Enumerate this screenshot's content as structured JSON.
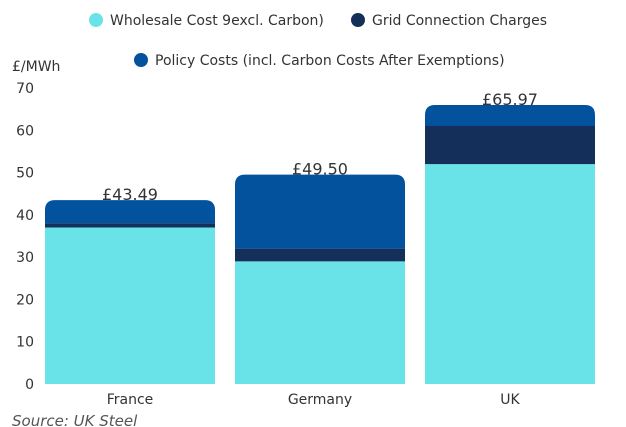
{
  "chart_data": {
    "type": "bar",
    "stacked": true,
    "categories": [
      "France",
      "Germany",
      "UK"
    ],
    "series": [
      {
        "name": "Wholesale Cost 9excl. Carbon)",
        "color": "#6ae3e8",
        "values": [
          37,
          29,
          52
        ]
      },
      {
        "name": "Grid Connection Charges",
        "color": "#14305a",
        "values": [
          1,
          3,
          9
        ]
      },
      {
        "name": "Policy Costs (incl. Carbon Costs After Exemptions)",
        "color": "#03529e",
        "values": [
          5.49,
          17.5,
          4.97
        ]
      }
    ],
    "totals": [
      "£43.49",
      "£49.50",
      "£65.97"
    ],
    "totals_values": [
      43.49,
      49.5,
      65.97
    ],
    "ylabel": "£/MWh",
    "ylim": [
      0,
      70
    ],
    "yticks": [
      0,
      10,
      20,
      30,
      40,
      50,
      60,
      70
    ],
    "grid": false,
    "legend_position": "top"
  },
  "source": "Source: UK Steel"
}
